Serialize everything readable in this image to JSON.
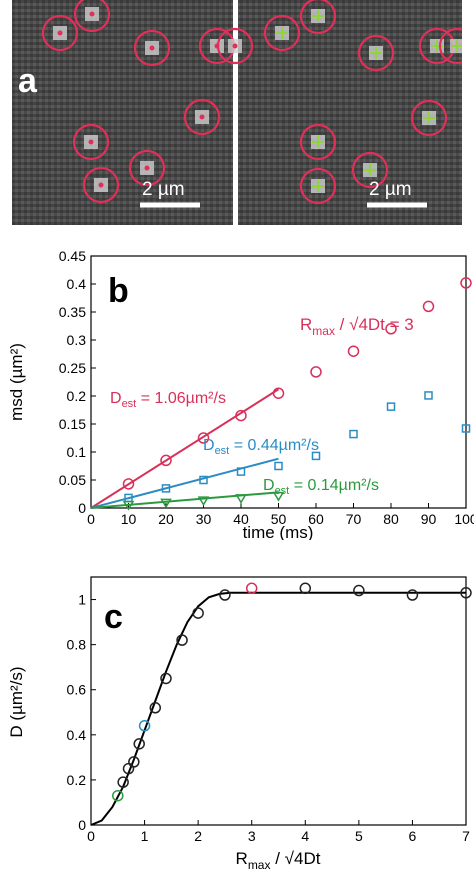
{
  "panel_a": {
    "label": "a",
    "scalebar_left": "2 µm",
    "scalebar_right": "2 µm",
    "particles_left": [
      [
        48,
        33
      ],
      [
        80,
        14
      ],
      [
        140,
        48
      ],
      [
        205,
        46
      ],
      [
        223,
        46
      ],
      [
        190,
        117
      ],
      [
        79,
        142
      ],
      [
        135,
        168
      ],
      [
        89,
        185
      ]
    ],
    "particles_right": [
      [
        270,
        33
      ],
      [
        306,
        16
      ],
      [
        364,
        53
      ],
      [
        425,
        46
      ],
      [
        445,
        46
      ],
      [
        417,
        118
      ],
      [
        306,
        142
      ],
      [
        358,
        170
      ],
      [
        306,
        186
      ]
    ]
  },
  "chart_data": [
    {
      "type": "scatter",
      "panel_label": "b",
      "xlabel": "time (ms)",
      "ylabel": "msd (µm²)",
      "xlim": [
        0,
        100
      ],
      "ylim": [
        0,
        0.45
      ],
      "xticks": [
        "0",
        "10",
        "20",
        "30",
        "40",
        "50",
        "60",
        "70",
        "80",
        "90",
        "100"
      ],
      "yticks": [
        "0",
        "0.05",
        "0.1",
        "0.15",
        "0.2",
        "0.25",
        "0.3",
        "0.35",
        "0.4",
        "0.45"
      ],
      "annotation": {
        "main": "R",
        "sub": "max",
        "rest": " / √4Dt = 3"
      },
      "series": [
        {
          "color": "#d9305a",
          "marker": "circle",
          "x": [
            10,
            20,
            30,
            40,
            50,
            60,
            70,
            80,
            90,
            100
          ],
          "y": [
            0.043,
            0.085,
            0.125,
            0.165,
            0.205,
            0.243,
            0.28,
            0.32,
            0.36,
            0.402
          ],
          "fit_x": [
            0,
            50
          ],
          "fit_y": [
            0,
            0.212
          ],
          "label": {
            "main": "D",
            "sub": "est",
            "rest": " = 1.06µm²/s"
          }
        },
        {
          "color": "#2b8cc4",
          "marker": "square",
          "x": [
            10,
            20,
            30,
            40,
            50,
            60,
            70,
            80,
            90,
            100
          ],
          "y": [
            0.018,
            0.035,
            0.05,
            0.065,
            0.075,
            0.093,
            0.132,
            0.181,
            0.201,
            0.142
          ],
          "fit_x": [
            0,
            50
          ],
          "fit_y": [
            0,
            0.088
          ],
          "label": {
            "main": "D",
            "sub": "est",
            "rest": " = 0.44µm²/s"
          }
        },
        {
          "color": "#2b9a3f",
          "marker": "triangle",
          "x": [
            10,
            20,
            30,
            40,
            50
          ],
          "y": [
            0.006,
            0.01,
            0.014,
            0.018,
            0.022
          ],
          "fit_x": [
            0,
            50
          ],
          "fit_y": [
            0,
            0.028
          ],
          "label": {
            "main": "D",
            "sub": "est",
            "rest": " = 0.14µm²/s"
          }
        }
      ]
    },
    {
      "type": "scatter",
      "panel_label": "c",
      "xlabel": {
        "main": "R",
        "sub": "max",
        "rest": " / √4Dt"
      },
      "ylabel": "D (µm²/s)",
      "xlim": [
        0,
        7
      ],
      "ylim": [
        0,
        1.1
      ],
      "xticks": [
        "0",
        "1",
        "2",
        "3",
        "4",
        "5",
        "6",
        "7"
      ],
      "yticks": [
        "0",
        "0.2",
        "0.4",
        "0.6",
        "0.8",
        "1"
      ],
      "points": [
        {
          "x": 0.5,
          "y": 0.13,
          "color": "#2b9a3f"
        },
        {
          "x": 0.6,
          "y": 0.19,
          "color": "#222222"
        },
        {
          "x": 0.7,
          "y": 0.25,
          "color": "#222222"
        },
        {
          "x": 0.8,
          "y": 0.28,
          "color": "#222222"
        },
        {
          "x": 0.9,
          "y": 0.36,
          "color": "#222222"
        },
        {
          "x": 1.0,
          "y": 0.44,
          "color": "#2b8cc4"
        },
        {
          "x": 1.2,
          "y": 0.52,
          "color": "#222222"
        },
        {
          "x": 1.4,
          "y": 0.65,
          "color": "#222222"
        },
        {
          "x": 1.7,
          "y": 0.82,
          "color": "#222222"
        },
        {
          "x": 2.0,
          "y": 0.94,
          "color": "#222222"
        },
        {
          "x": 2.5,
          "y": 1.02,
          "color": "#222222"
        },
        {
          "x": 3.0,
          "y": 1.05,
          "color": "#d9305a"
        },
        {
          "x": 4.0,
          "y": 1.05,
          "color": "#222222"
        },
        {
          "x": 5.0,
          "y": 1.04,
          "color": "#222222"
        },
        {
          "x": 6.0,
          "y": 1.02,
          "color": "#222222"
        },
        {
          "x": 7.0,
          "y": 1.03,
          "color": "#222222"
        }
      ],
      "curve": {
        "x": [
          0,
          0.2,
          0.4,
          0.6,
          0.8,
          1.0,
          1.2,
          1.4,
          1.6,
          1.8,
          2.0,
          2.2,
          2.4,
          2.6,
          2.8,
          3.0,
          4.0,
          5.0,
          6.0,
          7.0
        ],
        "y": [
          0,
          0.02,
          0.08,
          0.17,
          0.29,
          0.42,
          0.55,
          0.68,
          0.8,
          0.9,
          0.97,
          1.01,
          1.025,
          1.03,
          1.03,
          1.03,
          1.03,
          1.03,
          1.03,
          1.03
        ]
      }
    }
  ]
}
